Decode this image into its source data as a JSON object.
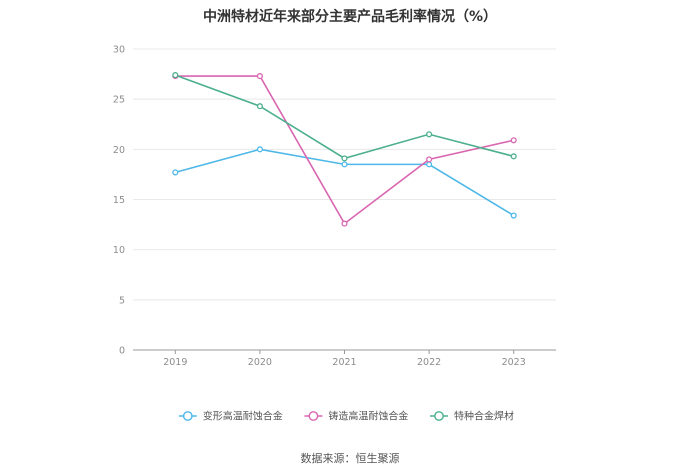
{
  "chart_data": {
    "type": "line",
    "title": "中洲特材近年来部分主要产品毛利率情况（%）",
    "categories": [
      "2019",
      "2020",
      "2021",
      "2022",
      "2023"
    ],
    "ylim": [
      0,
      30
    ],
    "yticks": [
      0,
      5,
      10,
      15,
      20,
      25,
      30
    ],
    "grid": true,
    "legend_position": "bottom",
    "series": [
      {
        "name": "变形高温耐蚀合金",
        "color": "#4db8e8",
        "values": [
          17.7,
          20.0,
          18.5,
          18.5,
          13.4
        ]
      },
      {
        "name": "铸造高温耐蚀合金",
        "color": "#d966b0",
        "values": [
          27.3,
          27.3,
          12.6,
          19.0,
          20.9
        ]
      },
      {
        "name": "特种合金焊材",
        "color": "#4caf8e",
        "values": [
          27.4,
          24.3,
          19.1,
          21.5,
          19.3
        ]
      }
    ]
  },
  "source": "数据来源：恒生聚源"
}
